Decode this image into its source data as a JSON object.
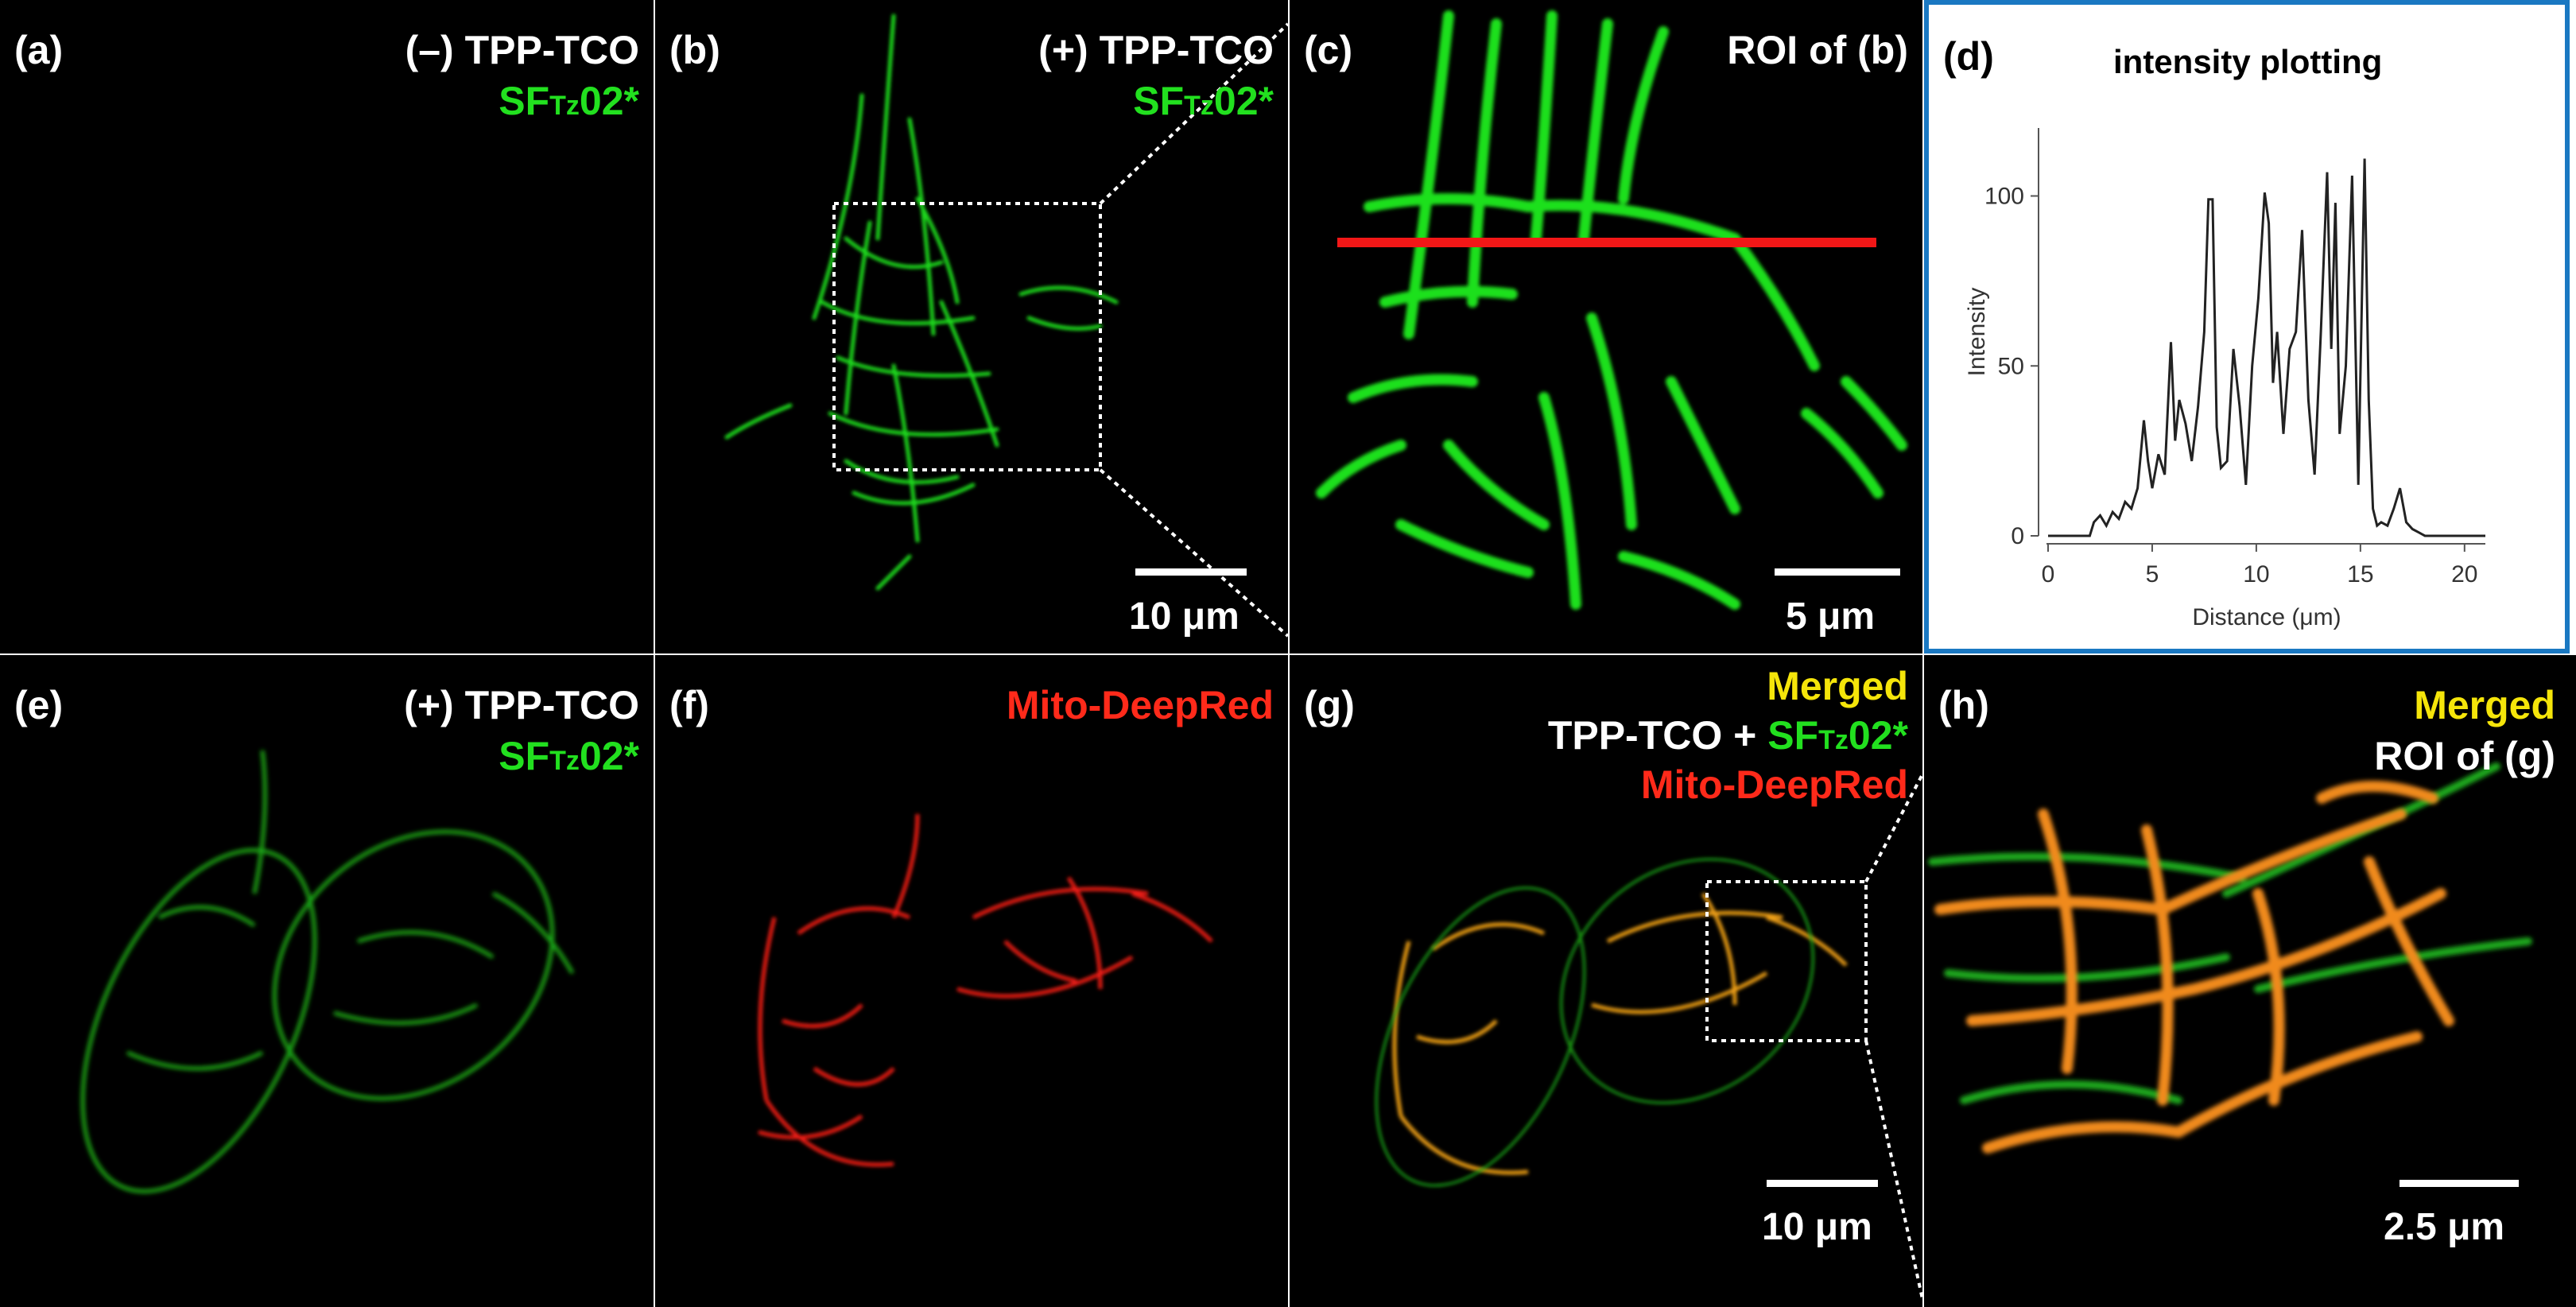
{
  "panels": {
    "a": {
      "label": "(a)",
      "title_line1": "(–) TPP-TCO",
      "title_line2_prefix": "SF",
      "title_line2_sub": "Tz",
      "title_line2_suffix": "02*"
    },
    "b": {
      "label": "(b)",
      "title_line1": "(+) TPP-TCO",
      "title_line2_prefix": "SF",
      "title_line2_sub": "Tz",
      "title_line2_suffix": "02*",
      "scale_bar": "10 μm"
    },
    "c": {
      "label": "(c)",
      "title": "ROI of (b)",
      "scale_bar": "5 μm"
    },
    "d": {
      "label": "(d)",
      "title": "intensity plotting"
    },
    "e": {
      "label": "(e)",
      "title_line1": "(+) TPP-TCO",
      "title_line2_prefix": "SF",
      "title_line2_sub": "Tz",
      "title_line2_suffix": "02*"
    },
    "f": {
      "label": "(f)",
      "title": "Mito-DeepRed"
    },
    "g": {
      "label": "(g)",
      "title_line1": "Merged",
      "title_line2_prefix": "TPP-TCO + ",
      "title_line2_green": "SF",
      "title_line2_sub": "Tz",
      "title_line2_suffix": "02*",
      "title_line3": "Mito-DeepRed",
      "scale_bar": "10 μm"
    },
    "h": {
      "label": "(h)",
      "title_line1": "Merged",
      "title_line2": "ROI of (g)",
      "scale_bar": "2.5 μm"
    }
  },
  "chart_data": {
    "type": "line",
    "title": "intensity plotting",
    "xlabel": "Distance (μm)",
    "ylabel": "Intensity",
    "xlim": [
      0,
      21
    ],
    "ylim": [
      0,
      120
    ],
    "xticks": [
      0,
      5,
      10,
      15,
      20
    ],
    "yticks": [
      0,
      50,
      100
    ],
    "grid": false,
    "x": [
      0,
      1,
      2,
      2.2,
      2.5,
      2.8,
      3.1,
      3.4,
      3.7,
      4.0,
      4.3,
      4.6,
      4.8,
      5.0,
      5.3,
      5.6,
      5.9,
      6.1,
      6.3,
      6.6,
      6.9,
      7.2,
      7.5,
      7.7,
      7.9,
      8.1,
      8.3,
      8.6,
      8.9,
      9.2,
      9.5,
      9.8,
      10.1,
      10.4,
      10.6,
      10.8,
      11.0,
      11.3,
      11.6,
      11.9,
      12.2,
      12.5,
      12.8,
      13.1,
      13.4,
      13.6,
      13.8,
      14.0,
      14.3,
      14.6,
      14.9,
      15.2,
      15.4,
      15.6,
      15.8,
      16.0,
      16.3,
      16.6,
      16.9,
      17.2,
      17.5,
      17.8,
      18.1,
      18.5,
      19,
      20,
      21
    ],
    "y": [
      0,
      0,
      0,
      4,
      6,
      3,
      7,
      5,
      10,
      8,
      14,
      34,
      22,
      14,
      24,
      18,
      57,
      28,
      40,
      33,
      22,
      38,
      60,
      99,
      99,
      32,
      20,
      22,
      55,
      38,
      15,
      50,
      70,
      101,
      92,
      45,
      60,
      30,
      55,
      60,
      90,
      40,
      18,
      60,
      107,
      55,
      98,
      30,
      50,
      106,
      15,
      111,
      40,
      8,
      3,
      4,
      3,
      8,
      14,
      4,
      2,
      1,
      0,
      0,
      0,
      0,
      0
    ]
  }
}
